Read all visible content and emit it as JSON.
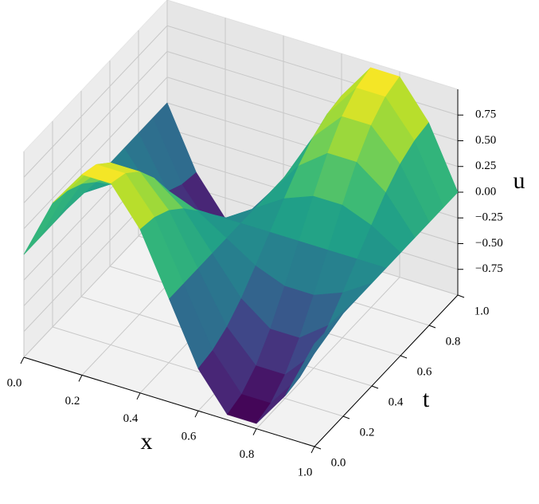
{
  "chart_data": {
    "type": "surface",
    "colormap": "viridis",
    "xlabel": "x",
    "ylabel": "t",
    "zlabel": "u",
    "x": [
      0,
      0.1,
      0.2,
      0.3,
      0.4,
      0.5,
      0.6,
      0.7,
      0.8,
      0.9,
      1
    ],
    "y": [
      0,
      0.1,
      0.2,
      0.3,
      0.4,
      0.5,
      0.6,
      0.7,
      0.8,
      0.9,
      1
    ],
    "z": [
      [
        0,
        0.59,
        0.95,
        0.95,
        0.59,
        0,
        -0.59,
        -0.95,
        -0.95,
        -0.59,
        0
      ],
      [
        0,
        0.56,
        0.9,
        0.9,
        0.56,
        0,
        -0.56,
        -0.9,
        -0.9,
        -0.56,
        0
      ],
      [
        0,
        0.48,
        0.77,
        0.77,
        0.48,
        0,
        -0.48,
        -0.77,
        -0.77,
        -0.48,
        0
      ],
      [
        0,
        0.35,
        0.56,
        0.56,
        0.35,
        0,
        -0.35,
        -0.56,
        -0.56,
        -0.35,
        0
      ],
      [
        0,
        0.18,
        0.29,
        0.29,
        0.18,
        0,
        -0.18,
        -0.29,
        -0.29,
        -0.18,
        0
      ],
      [
        0,
        0,
        0,
        0,
        0,
        0,
        0,
        0,
        0,
        0,
        0
      ],
      [
        0,
        -0.18,
        -0.29,
        -0.29,
        -0.18,
        0,
        0.18,
        0.29,
        0.29,
        0.18,
        0
      ],
      [
        0,
        -0.35,
        -0.56,
        -0.56,
        -0.35,
        0,
        0.35,
        0.56,
        0.56,
        0.35,
        0
      ],
      [
        0,
        -0.48,
        -0.77,
        -0.77,
        -0.48,
        0,
        0.48,
        0.77,
        0.77,
        0.48,
        0
      ],
      [
        0,
        -0.56,
        -0.9,
        -0.9,
        -0.56,
        0,
        0.56,
        0.9,
        0.9,
        0.56,
        0
      ],
      [
        0,
        -0.59,
        -0.95,
        -0.95,
        -0.59,
        0,
        0.59,
        0.95,
        0.95,
        0.59,
        0
      ]
    ],
    "xlim": [
      0,
      1
    ],
    "ylim": [
      0,
      1
    ],
    "zlim": [
      -1,
      1
    ],
    "xticks": [
      {
        "value": 0,
        "label": "0.0"
      },
      0.2,
      0.4,
      0.6,
      0.8,
      {
        "value": 1,
        "label": "1.0"
      }
    ],
    "yticks": [
      {
        "value": 0,
        "label": "0.0"
      },
      0.2,
      0.4,
      0.6,
      0.8,
      {
        "value": 1,
        "label": "1.0"
      }
    ],
    "zticks": [
      {
        "value": -0.75,
        "label": "−0.75"
      },
      {
        "value": -0.5,
        "label": "−0.50"
      },
      {
        "value": -0.25,
        "label": "−0.25"
      },
      {
        "value": 0,
        "label": "0.00"
      },
      0.25,
      {
        "value": 0.5,
        "label": "0.50"
      },
      0.75
    ],
    "grid": true
  }
}
